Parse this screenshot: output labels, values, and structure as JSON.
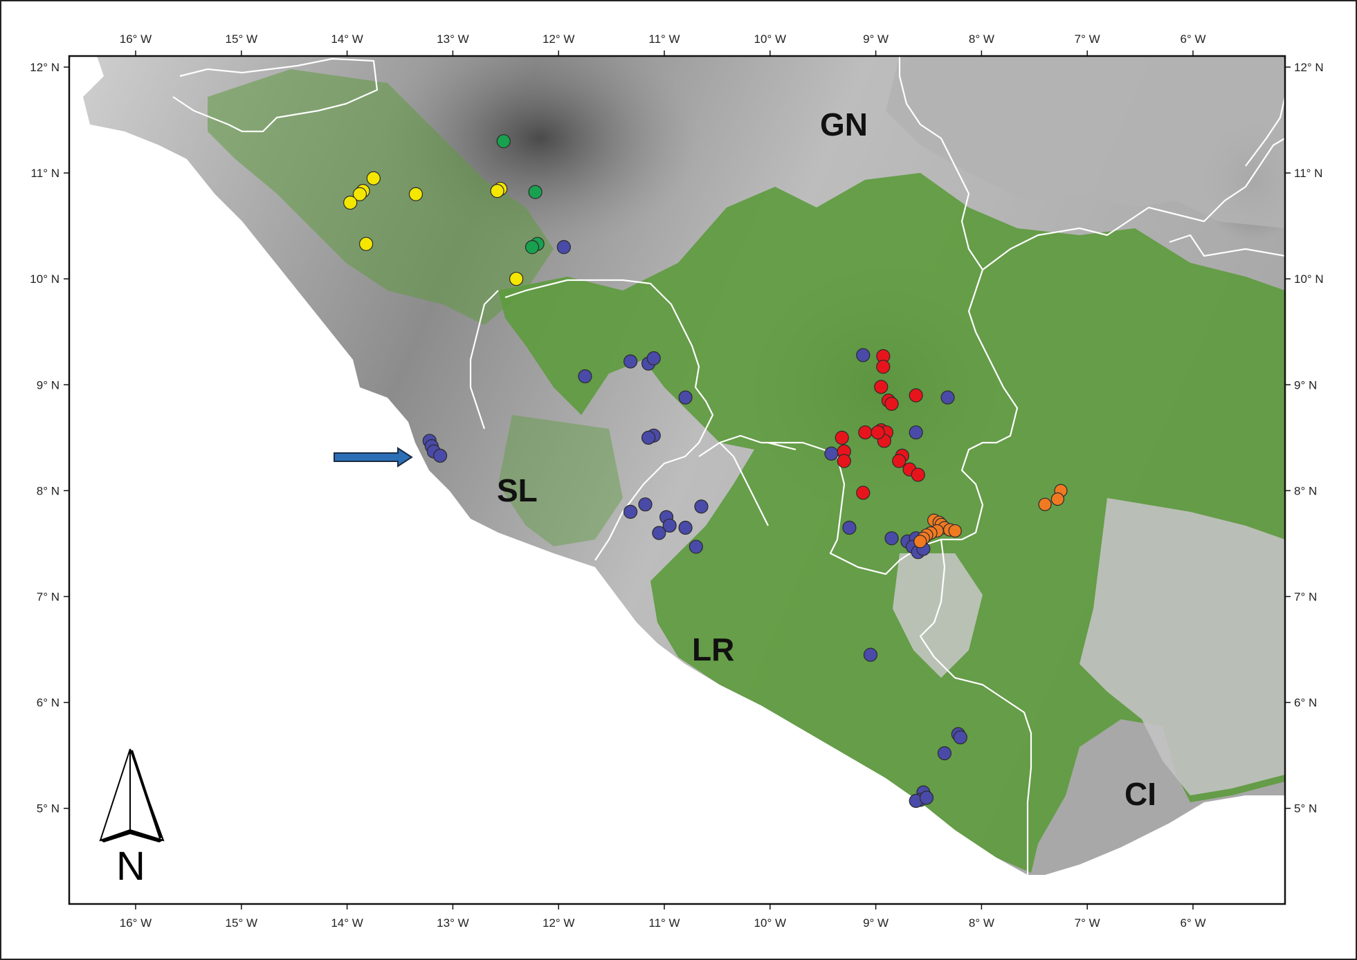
{
  "map": {
    "longitude_ticks": [
      "16° W",
      "15° W",
      "14° W",
      "13° W",
      "12° W",
      "11° W",
      "10° W",
      "9° W",
      "8° W",
      "7° W",
      "6° W"
    ],
    "latitude_ticks": [
      "12° N",
      "11° N",
      "10° N",
      "9° N",
      "8° N",
      "7° N",
      "6° N",
      "5° N"
    ],
    "country_labels": [
      "GN",
      "SL",
      "LR",
      "CI"
    ],
    "north_arrow_label": "N",
    "colors": {
      "forest": "#5e9b3f",
      "ocean": "#ffffff",
      "land_light": "#d9d9d9",
      "land_dark": "#5a5a5a",
      "border": "#ffffff",
      "yellow": "#f5e600",
      "green": "#18a14f",
      "blue": "#4a4aa8",
      "red": "#e8141c",
      "orange": "#f07a22",
      "arrow": "#2c6fb6"
    },
    "points": {
      "yellow": [
        [
          -13.75,
          10.95
        ],
        [
          -13.85,
          10.83
        ],
        [
          -13.88,
          10.8
        ],
        [
          -13.97,
          10.72
        ],
        [
          -13.35,
          10.8
        ],
        [
          -13.82,
          10.33
        ],
        [
          -12.55,
          10.85
        ],
        [
          -12.58,
          10.83
        ],
        [
          -12.4,
          10.0
        ]
      ],
      "green": [
        [
          -12.52,
          11.3
        ],
        [
          -12.22,
          10.82
        ],
        [
          -12.2,
          10.33
        ],
        [
          -12.25,
          10.3
        ]
      ],
      "blue": [
        [
          -11.95,
          10.3
        ],
        [
          -11.75,
          9.08
        ],
        [
          -11.32,
          9.22
        ],
        [
          -11.15,
          9.2
        ],
        [
          -11.1,
          9.25
        ],
        [
          -10.8,
          8.88
        ],
        [
          -11.1,
          8.52
        ],
        [
          -11.15,
          8.5
        ],
        [
          -13.22,
          8.47
        ],
        [
          -13.2,
          8.42
        ],
        [
          -13.18,
          8.37
        ],
        [
          -13.12,
          8.33
        ],
        [
          -11.18,
          7.87
        ],
        [
          -11.32,
          7.8
        ],
        [
          -10.98,
          7.75
        ],
        [
          -10.95,
          7.67
        ],
        [
          -10.8,
          7.65
        ],
        [
          -10.65,
          7.85
        ],
        [
          -11.05,
          7.6
        ],
        [
          -10.7,
          7.47
        ],
        [
          -9.12,
          9.28
        ],
        [
          -8.32,
          8.88
        ],
        [
          -8.62,
          8.55
        ],
        [
          -9.42,
          8.35
        ],
        [
          -9.25,
          7.65
        ],
        [
          -8.85,
          7.55
        ],
        [
          -8.7,
          7.52
        ],
        [
          -8.62,
          7.55
        ],
        [
          -8.65,
          7.47
        ],
        [
          -8.6,
          7.42
        ],
        [
          -8.55,
          7.45
        ],
        [
          -9.05,
          6.45
        ],
        [
          -8.22,
          5.7
        ],
        [
          -8.2,
          5.67
        ],
        [
          -8.35,
          5.52
        ],
        [
          -8.55,
          5.15
        ],
        [
          -8.58,
          5.08
        ],
        [
          -8.62,
          5.07
        ],
        [
          -8.52,
          5.1
        ]
      ],
      "red": [
        [
          -8.93,
          9.27
        ],
        [
          -8.93,
          9.17
        ],
        [
          -8.95,
          8.98
        ],
        [
          -8.88,
          8.85
        ],
        [
          -8.85,
          8.82
        ],
        [
          -8.62,
          8.9
        ],
        [
          -9.1,
          8.55
        ],
        [
          -8.95,
          8.57
        ],
        [
          -8.92,
          8.52
        ],
        [
          -8.9,
          8.55
        ],
        [
          -8.92,
          8.47
        ],
        [
          -8.98,
          8.55
        ],
        [
          -9.32,
          8.5
        ],
        [
          -9.3,
          8.37
        ],
        [
          -9.3,
          8.28
        ],
        [
          -8.75,
          8.33
        ],
        [
          -8.78,
          8.28
        ],
        [
          -8.68,
          8.2
        ],
        [
          -8.6,
          8.15
        ],
        [
          -9.12,
          7.98
        ]
      ],
      "orange": [
        [
          -7.25,
          8.0
        ],
        [
          -7.28,
          7.92
        ],
        [
          -7.4,
          7.87
        ],
        [
          -8.45,
          7.72
        ],
        [
          -8.4,
          7.7
        ],
        [
          -8.38,
          7.68
        ],
        [
          -8.35,
          7.65
        ],
        [
          -8.42,
          7.62
        ],
        [
          -8.48,
          7.6
        ],
        [
          -8.52,
          7.58
        ],
        [
          -8.3,
          7.63
        ],
        [
          -8.25,
          7.62
        ],
        [
          -8.55,
          7.55
        ],
        [
          -8.58,
          7.52
        ]
      ]
    }
  }
}
